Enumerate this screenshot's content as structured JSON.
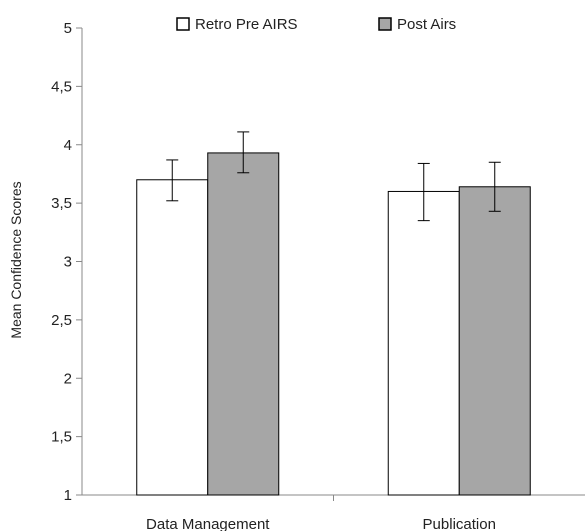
{
  "chart_data": {
    "type": "bar",
    "title": "",
    "xlabel": "",
    "ylabel": "Mean Confidence Scores",
    "ylim": [
      1,
      5
    ],
    "yticks": [
      "1",
      "1,5",
      "2",
      "2,5",
      "3",
      "3,5",
      "4",
      "4,5",
      "5"
    ],
    "categories": [
      "Data Management",
      "Publication"
    ],
    "series": [
      {
        "name": "Retro Pre AIRS",
        "color": "#ffffff",
        "values": [
          3.7,
          3.6
        ],
        "error_low": [
          3.52,
          3.35
        ],
        "error_high": [
          3.87,
          3.84
        ]
      },
      {
        "name": "Post Airs",
        "color": "#a6a6a6",
        "values": [
          3.93,
          3.64
        ],
        "error_low": [
          3.76,
          3.43
        ],
        "error_high": [
          4.11,
          3.85
        ]
      }
    ],
    "legend_position": "top",
    "grid": false
  }
}
